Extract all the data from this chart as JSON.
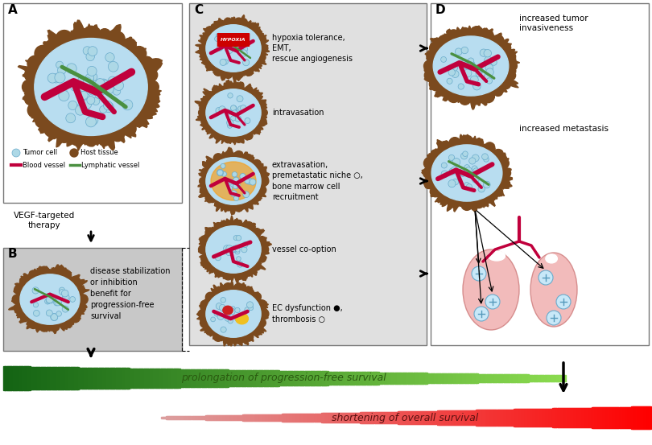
{
  "bg_color": "#ffffff",
  "panel_A_label": "A",
  "panel_B_label": "B",
  "panel_C_label": "C",
  "panel_D_label": "D",
  "vegf_text": "VEGF-targeted\ntherapy",
  "panel_B_text": "disease stabilization\nor inhibition\nbenefit for\nprogression-free\nsurvival",
  "c_labels": [
    "hypoxia tolerance,\nEMT,\nrescue angiogenesis",
    "intravasation",
    "extravasation,\npremetastatic niche ○,\nbone marrow cell\nrecruitment",
    "vessel co-option",
    "EC dysfunction ●,\nthrombosis ○"
  ],
  "d_top_text": "increased tumor\ninvasiveness",
  "d_bottom_text": "increased metastasis",
  "prolongation_text": "prolongation of progression-free survival",
  "shortening_text": "shortening of overall survival",
  "tumor_cell_color": "#add8e6",
  "tumor_fill_color": "#b8ddf0",
  "host_tissue_color": "#7B4A1E",
  "blood_vessel_color": "#c0003c",
  "lymph_vessel_color": "#4a9040",
  "gray_box_color": "#c8c8c8",
  "light_gray_box_color": "#e0e0e0",
  "lung_color": "#f0b0b0"
}
